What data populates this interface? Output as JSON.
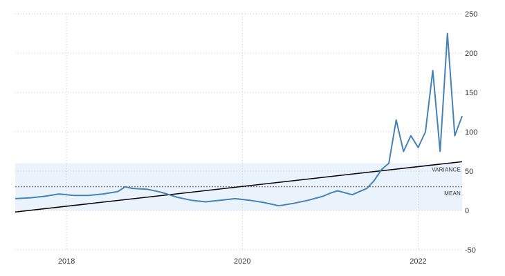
{
  "chart_data": {
    "type": "line",
    "title": "",
    "xlabel": "",
    "ylabel": "",
    "x_range": [
      "2017-06",
      "2022-07"
    ],
    "ylim": [
      -50,
      250
    ],
    "y_ticks": [
      250,
      200,
      150,
      100,
      50,
      0,
      -50
    ],
    "x_ticks": [
      {
        "label": "2018",
        "x": "2018-01-01"
      },
      {
        "label": "2020",
        "x": "2020-01-01"
      },
      {
        "label": "2022",
        "x": "2022-01-01"
      }
    ],
    "grid": true,
    "series": [
      {
        "color": "#4682b4",
        "points": [
          [
            "2017-06",
            15
          ],
          [
            "2017-08",
            16
          ],
          [
            "2017-10",
            18
          ],
          [
            "2017-12",
            21
          ],
          [
            "2018-02",
            19
          ],
          [
            "2018-04",
            19
          ],
          [
            "2018-06",
            21
          ],
          [
            "2018-08",
            24
          ],
          [
            "2018-09",
            30
          ],
          [
            "2018-10",
            28
          ],
          [
            "2018-12",
            27
          ],
          [
            "2019-02",
            23
          ],
          [
            "2019-04",
            17
          ],
          [
            "2019-06",
            13
          ],
          [
            "2019-08",
            11
          ],
          [
            "2019-10",
            13
          ],
          [
            "2019-12",
            15
          ],
          [
            "2020-02",
            13
          ],
          [
            "2020-04",
            10
          ],
          [
            "2020-06",
            6
          ],
          [
            "2020-08",
            9
          ],
          [
            "2020-10",
            13
          ],
          [
            "2020-12",
            18
          ],
          [
            "2021-01",
            22
          ],
          [
            "2021-02",
            25
          ],
          [
            "2021-04",
            20
          ],
          [
            "2021-06",
            28
          ],
          [
            "2021-07",
            38
          ],
          [
            "2021-08",
            52
          ],
          [
            "2021-09",
            60
          ],
          [
            "2021-10",
            115
          ],
          [
            "2021-11",
            75
          ],
          [
            "2021-12",
            95
          ],
          [
            "2022-01",
            80
          ],
          [
            "2022-02",
            100
          ],
          [
            "2022-03",
            178
          ],
          [
            "2022-04",
            75
          ],
          [
            "2022-05",
            225
          ],
          [
            "2022-06",
            95
          ],
          [
            "2022-07",
            120
          ]
        ]
      }
    ],
    "trend_line": {
      "color": "#000000",
      "start": [
        "2017-06",
        -2
      ],
      "end": [
        "2022-07",
        62
      ]
    },
    "bands": [
      {
        "name": "VARIANCE",
        "value": 60,
        "color": "#eaf3fc"
      },
      {
        "name": "MEAN",
        "value": 30,
        "style": "dashed"
      }
    ]
  }
}
